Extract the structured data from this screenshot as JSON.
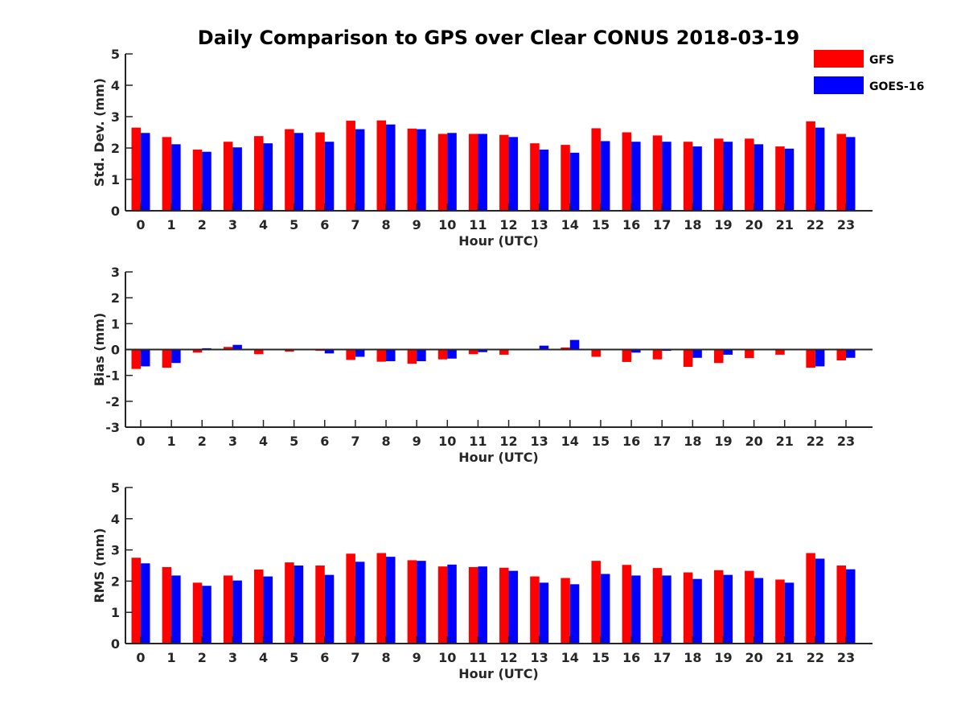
{
  "chart_data": {
    "type": "bar",
    "title": "Daily Comparison to GPS over Clear CONUS 2018-03-19",
    "legend": {
      "placement": "top-right",
      "entries": [
        {
          "name": "GFS",
          "color": "#ff0000"
        },
        {
          "name": "GOES-16",
          "color": "#0000ff"
        }
      ]
    },
    "panels": [
      {
        "id": "std",
        "ylabel": "Std. Dev. (mm)",
        "xlabel": "Hour (UTC)",
        "ylim": [
          0,
          5
        ],
        "yticks": [
          0,
          1,
          2,
          3,
          4,
          5
        ],
        "categories": [
          "0",
          "1",
          "2",
          "3",
          "4",
          "5",
          "6",
          "7",
          "8",
          "9",
          "10",
          "11",
          "12",
          "13",
          "14",
          "15",
          "16",
          "17",
          "18",
          "19",
          "20",
          "21",
          "22",
          "23"
        ],
        "series": [
          {
            "name": "GFS",
            "color": "#ff0000",
            "values": [
              2.65,
              2.35,
              1.95,
              2.2,
              2.38,
              2.6,
              2.5,
              2.87,
              2.88,
              2.62,
              2.45,
              2.45,
              2.42,
              2.15,
              2.1,
              2.63,
              2.5,
              2.4,
              2.2,
              2.3,
              2.3,
              2.05,
              2.85,
              2.45
            ]
          },
          {
            "name": "GOES-16",
            "color": "#0000ff",
            "values": [
              2.48,
              2.12,
              1.88,
              2.02,
              2.15,
              2.48,
              2.2,
              2.6,
              2.75,
              2.6,
              2.48,
              2.45,
              2.35,
              1.95,
              1.85,
              2.22,
              2.2,
              2.2,
              2.05,
              2.2,
              2.12,
              1.98,
              2.65,
              2.35
            ]
          }
        ]
      },
      {
        "id": "bias",
        "ylabel": "Bias (mm)",
        "xlabel": "Hour (UTC)",
        "ylim": [
          -3,
          3
        ],
        "yticks": [
          -3,
          -2,
          -1,
          0,
          1,
          2,
          3
        ],
        "zero_line": true,
        "categories": [
          "0",
          "1",
          "2",
          "3",
          "4",
          "5",
          "6",
          "7",
          "8",
          "9",
          "10",
          "11",
          "12",
          "13",
          "14",
          "15",
          "16",
          "17",
          "18",
          "19",
          "20",
          "21",
          "22",
          "23"
        ],
        "series": [
          {
            "name": "GFS",
            "color": "#ff0000",
            "values": [
              -0.75,
              -0.7,
              -0.12,
              0.1,
              -0.18,
              -0.08,
              -0.05,
              -0.4,
              -0.47,
              -0.55,
              -0.38,
              -0.18,
              -0.2,
              0.0,
              0.08,
              -0.28,
              -0.48,
              -0.38,
              -0.67,
              -0.52,
              -0.33,
              -0.2,
              -0.7,
              -0.42
            ]
          },
          {
            "name": "GOES-16",
            "color": "#0000ff",
            "values": [
              -0.65,
              -0.52,
              0.05,
              0.18,
              0.0,
              0.0,
              -0.15,
              -0.28,
              -0.45,
              -0.45,
              -0.35,
              -0.1,
              0.0,
              0.15,
              0.37,
              0.03,
              -0.12,
              -0.05,
              -0.32,
              -0.2,
              0.0,
              0.0,
              -0.65,
              -0.32
            ]
          }
        ]
      },
      {
        "id": "rms",
        "ylabel": "RMS (mm)",
        "xlabel": "Hour (UTC)",
        "ylim": [
          0,
          5
        ],
        "yticks": [
          0,
          1,
          2,
          3,
          4,
          5
        ],
        "categories": [
          "0",
          "1",
          "2",
          "3",
          "4",
          "5",
          "6",
          "7",
          "8",
          "9",
          "10",
          "11",
          "12",
          "13",
          "14",
          "15",
          "16",
          "17",
          "18",
          "19",
          "20",
          "21",
          "22",
          "23"
        ],
        "series": [
          {
            "name": "GFS",
            "color": "#ff0000",
            "values": [
              2.75,
              2.45,
              1.95,
              2.18,
              2.37,
              2.6,
              2.5,
              2.88,
              2.9,
              2.67,
              2.47,
              2.45,
              2.43,
              2.15,
              2.1,
              2.65,
              2.52,
              2.42,
              2.28,
              2.35,
              2.33,
              2.05,
              2.9,
              2.5
            ]
          },
          {
            "name": "GOES-16",
            "color": "#0000ff",
            "values": [
              2.57,
              2.18,
              1.85,
              2.02,
              2.15,
              2.5,
              2.2,
              2.62,
              2.78,
              2.65,
              2.53,
              2.47,
              2.33,
              1.95,
              1.9,
              2.23,
              2.18,
              2.18,
              2.07,
              2.2,
              2.1,
              1.95,
              2.72,
              2.38
            ]
          }
        ]
      }
    ]
  }
}
